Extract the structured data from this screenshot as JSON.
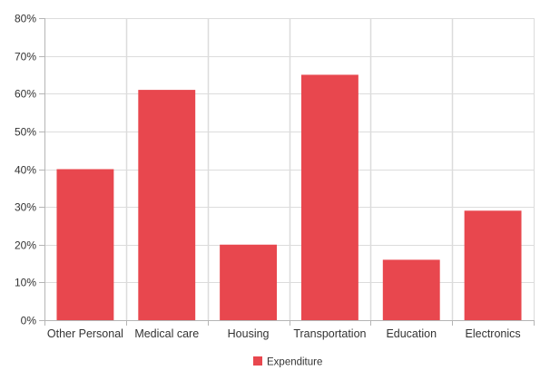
{
  "chart_data": {
    "type": "bar",
    "title": "",
    "xlabel": "",
    "ylabel": "",
    "categories": [
      "Other Personal",
      "Medical care",
      "Housing",
      "Transportation",
      "Education",
      "Electronics"
    ],
    "series": [
      {
        "name": "Expenditure",
        "values": [
          40,
          61,
          20,
          65,
          16,
          29
        ],
        "color": "#e8474e"
      }
    ],
    "ylim": [
      0,
      80
    ],
    "ytick_step": 10,
    "ytick_suffix": "%",
    "grid": true,
    "legend_position": "bottom-center"
  }
}
